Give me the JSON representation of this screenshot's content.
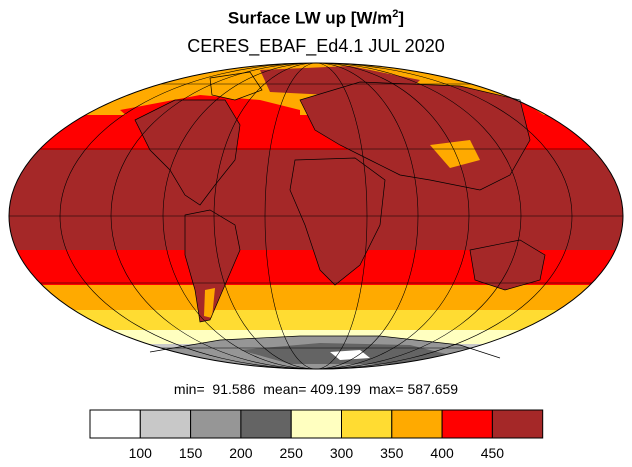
{
  "title": {
    "main": "Surface LW up [W/m",
    "sup": "2",
    "close": "]"
  },
  "subtitle": "CERES_EBAF_Ed4.1 JUL 2020",
  "stats": {
    "min": "min=  91.586",
    "mean": "mean= 409.199",
    "max": "max= 587.659"
  },
  "legend": {
    "ticks": [
      "100",
      "150",
      "200",
      "250",
      "300",
      "350",
      "400",
      "450"
    ],
    "colors": [
      "#ffffff",
      "#c8c8c8",
      "#969696",
      "#646464",
      "#ffffc0",
      "#ffdc32",
      "#ffaa00",
      "#ff0000",
      "#a52828"
    ]
  },
  "map": {
    "projection": "mollweide",
    "band_colors": {
      "hot": "#a52828",
      "warm": "#ff0000",
      "mid": "#ffaa00",
      "cool": "#ffdc32",
      "cold": "#ffffc0",
      "ice1": "#646464",
      "ice2": "#969696",
      "ice3": "#c8c8c8",
      "ice4": "#ffffff"
    }
  }
}
